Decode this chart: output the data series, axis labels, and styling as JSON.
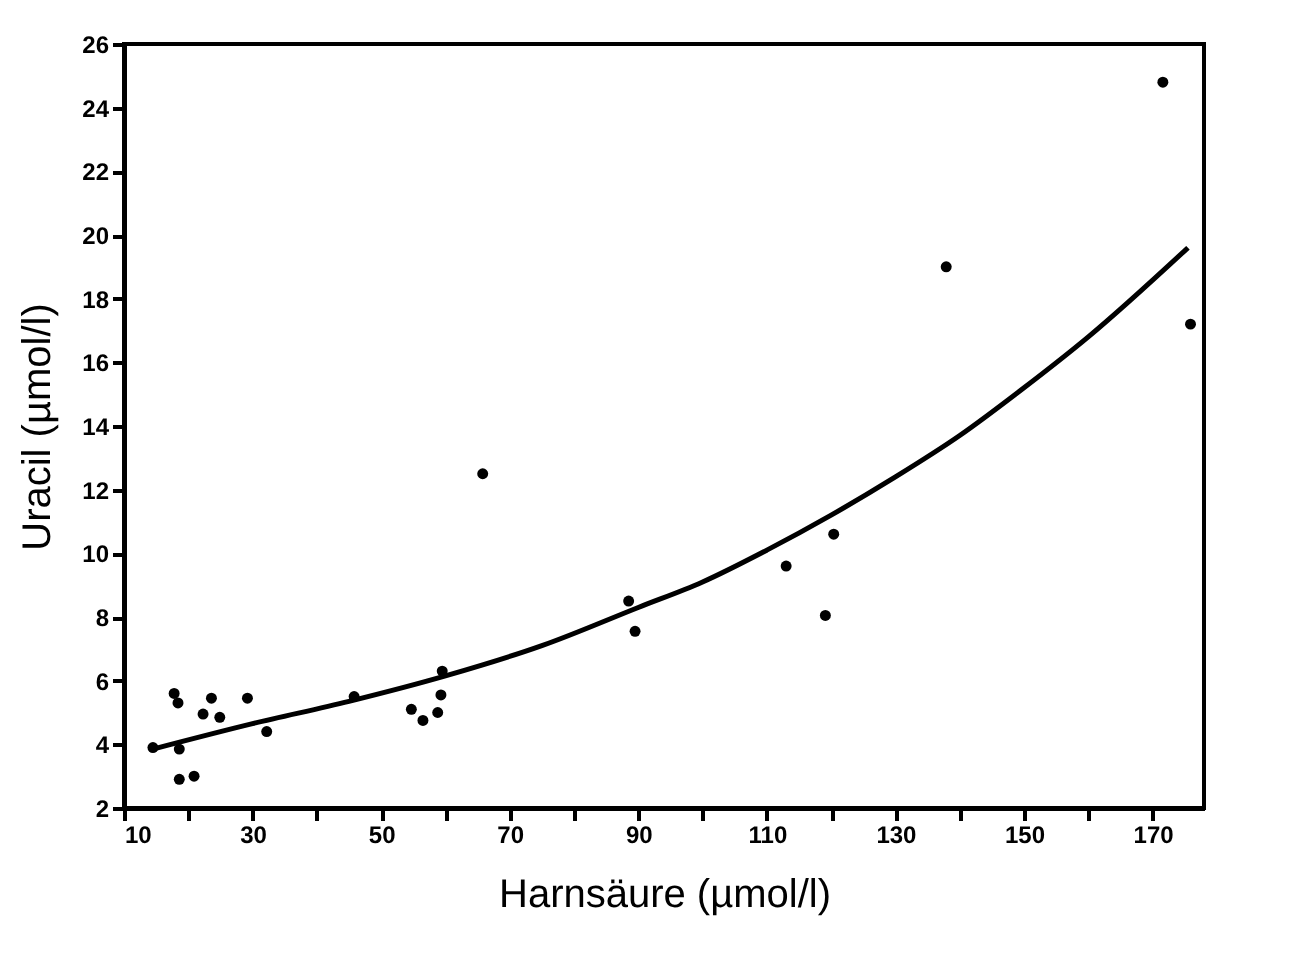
{
  "chart_data": {
    "type": "scatter",
    "xlabel": "Harnsäure (µmol/l)",
    "ylabel": "Uracil (µmol/l)",
    "xlim": [
      10,
      178
    ],
    "ylim": [
      2,
      26
    ],
    "xticks": [
      10,
      {
        "value": 20,
        "label": null
      },
      30,
      {
        "value": 40,
        "label": null
      },
      50,
      {
        "value": 60,
        "label": null
      },
      70,
      {
        "value": 80,
        "label": null
      },
      90,
      {
        "value": 100,
        "label": null
      },
      110,
      {
        "value": 120,
        "label": null
      },
      130,
      {
        "value": 140,
        "label": null
      },
      150,
      {
        "value": 160,
        "label": null
      },
      170
    ],
    "yticks": [
      2,
      4,
      6,
      8,
      10,
      12,
      14,
      16,
      18,
      20,
      22,
      24,
      26
    ],
    "grid": false,
    "legend": false,
    "series": [
      {
        "type": "scatter",
        "color": "#000000",
        "marker": "circle",
        "x": [
          14.5,
          17.8,
          18.4,
          18.6,
          18.6,
          20.9,
          22.3,
          23.6,
          24.9,
          29.2,
          32.2,
          45.8,
          54.7,
          56.5,
          58.8,
          59.3,
          59.5,
          65.8,
          88.5,
          89.5,
          113.0,
          119.1,
          120.4,
          137.9,
          171.6,
          175.9
        ],
        "values": [
          3.9,
          5.6,
          5.3,
          3.85,
          2.9,
          3.0,
          4.95,
          5.45,
          4.85,
          5.45,
          4.4,
          5.5,
          5.1,
          4.75,
          5.0,
          5.55,
          6.3,
          12.5,
          8.5,
          7.55,
          9.6,
          8.05,
          10.6,
          19.0,
          24.8,
          17.2
        ]
      },
      {
        "type": "line",
        "color": "#000000",
        "marker": "none",
        "line_style": "solid",
        "x": [
          14.5,
          30,
          45,
          60,
          75,
          90,
          100,
          110,
          120,
          130,
          140,
          150,
          160,
          175.5
        ],
        "values": [
          3.85,
          4.65,
          5.35,
          6.15,
          7.1,
          8.3,
          9.1,
          10.1,
          11.2,
          12.4,
          13.7,
          15.2,
          16.8,
          19.6
        ]
      }
    ]
  }
}
